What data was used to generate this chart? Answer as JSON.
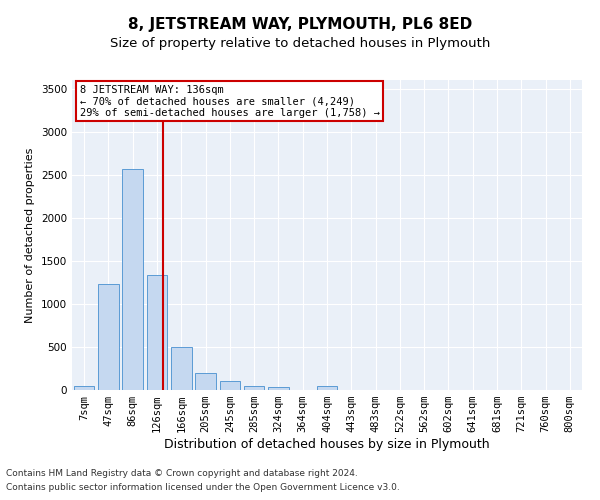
{
  "title": "8, JETSTREAM WAY, PLYMOUTH, PL6 8ED",
  "subtitle": "Size of property relative to detached houses in Plymouth",
  "xlabel": "Distribution of detached houses by size in Plymouth",
  "ylabel": "Number of detached properties",
  "categories": [
    "7sqm",
    "47sqm",
    "86sqm",
    "126sqm",
    "166sqm",
    "205sqm",
    "245sqm",
    "285sqm",
    "324sqm",
    "364sqm",
    "404sqm",
    "443sqm",
    "483sqm",
    "522sqm",
    "562sqm",
    "602sqm",
    "641sqm",
    "681sqm",
    "721sqm",
    "760sqm",
    "800sqm"
  ],
  "values": [
    50,
    1230,
    2570,
    1340,
    500,
    195,
    100,
    50,
    40,
    0,
    50,
    0,
    0,
    0,
    0,
    0,
    0,
    0,
    0,
    0,
    0
  ],
  "bar_color": "#c5d8f0",
  "bar_edge_color": "#5b9bd5",
  "property_line_color": "#cc0000",
  "annotation_text": "8 JETSTREAM WAY: 136sqm\n← 70% of detached houses are smaller (4,249)\n29% of semi-detached houses are larger (1,758) →",
  "annotation_box_color": "#ffffff",
  "annotation_box_edge_color": "#cc0000",
  "ylim": [
    0,
    3600
  ],
  "yticks": [
    0,
    500,
    1000,
    1500,
    2000,
    2500,
    3000,
    3500
  ],
  "background_color": "#eaf0f8",
  "footer_line1": "Contains HM Land Registry data © Crown copyright and database right 2024.",
  "footer_line2": "Contains public sector information licensed under the Open Government Licence v3.0.",
  "title_fontsize": 11,
  "subtitle_fontsize": 9.5,
  "xlabel_fontsize": 9,
  "ylabel_fontsize": 8,
  "tick_fontsize": 7.5,
  "annotation_fontsize": 7.5,
  "footer_fontsize": 6.5
}
